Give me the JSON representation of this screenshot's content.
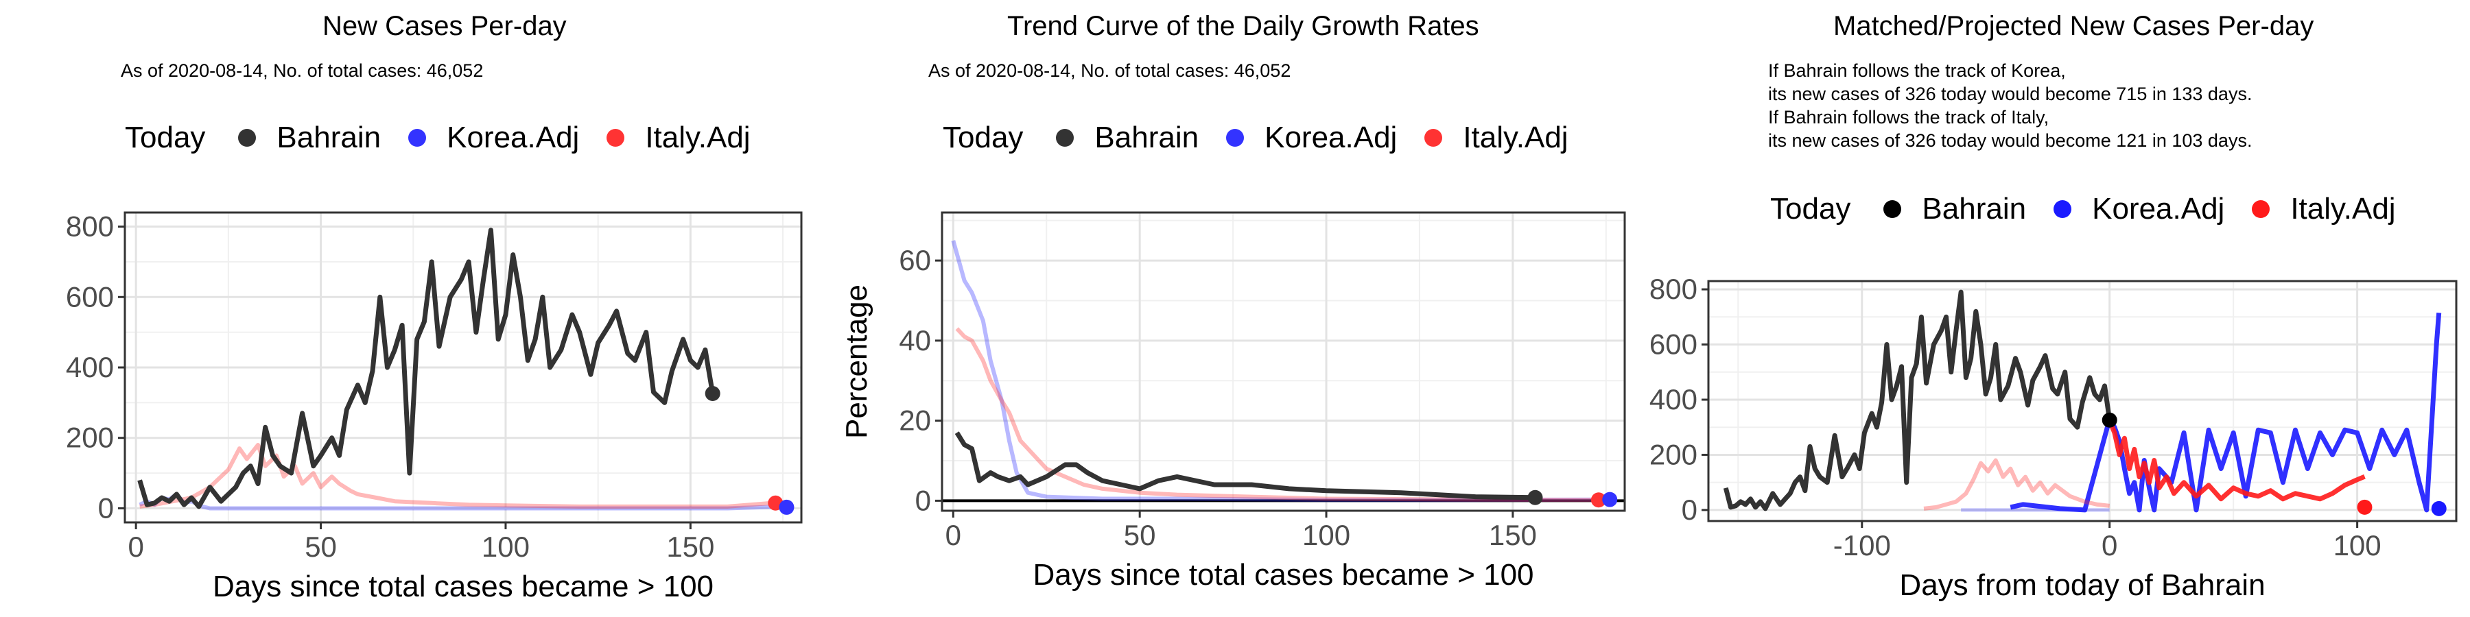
{
  "panels": [
    {
      "title": "New Cases Per-day",
      "subtitle": "As of 2020-08-14, No. of total cases: 46,052",
      "legend": {
        "title": "Today",
        "items": [
          "Bahrain",
          "Korea.Adj",
          "Italy.Adj"
        ]
      }
    },
    {
      "title": "Trend Curve of the Daily Growth Rates",
      "subtitle": "As of 2020-08-14, No. of total cases: 46,052",
      "legend": {
        "title": "Today",
        "items": [
          "Bahrain",
          "Korea.Adj",
          "Italy.Adj"
        ]
      }
    },
    {
      "title": "Matched/Projected New Cases Per-day",
      "subtitle": "If Bahrain follows the track of Korea,\nits new cases of 326 today would become 715 in 133 days.\nIf Bahrain follows the track of Italy,\nits new cases of 326 today would become 121 in 103 days.",
      "legend": {
        "title": "Today",
        "items": [
          "Bahrain",
          "Korea.Adj",
          "Italy.Adj"
        ]
      }
    }
  ],
  "colors": {
    "bahrain": "#333333",
    "korea": "#3333ff",
    "italy": "#ff3333",
    "dot_bahrain_1": "#333333",
    "dot_bahrain_3": "#000000"
  },
  "chart_data": [
    {
      "type": "line",
      "title": "New Cases Per-day",
      "xlabel": "Days since total cases became > 100",
      "ylabel": "",
      "xlim": [
        -3,
        180
      ],
      "ylim": [
        -40,
        840
      ],
      "xticks": [
        0,
        50,
        100,
        150
      ],
      "yticks": [
        0,
        200,
        400,
        600,
        800
      ],
      "series": [
        {
          "name": "Bahrain",
          "x": [
            1,
            3,
            5,
            7,
            9,
            11,
            13,
            15,
            17,
            20,
            23,
            25,
            27,
            29,
            31,
            33,
            35,
            37,
            39,
            42,
            45,
            48,
            50,
            53,
            55,
            57,
            60,
            62,
            64,
            66,
            68,
            70,
            72,
            74,
            76,
            78,
            80,
            82,
            85,
            88,
            90,
            92,
            94,
            96,
            98,
            100,
            102,
            104,
            106,
            108,
            110,
            112,
            115,
            118,
            120,
            123,
            125,
            128,
            130,
            133,
            135,
            138,
            140,
            143,
            145,
            148,
            150,
            152,
            154,
            156
          ],
          "y": [
            80,
            10,
            15,
            30,
            20,
            40,
            10,
            30,
            5,
            60,
            20,
            40,
            60,
            100,
            120,
            70,
            230,
            150,
            120,
            100,
            270,
            120,
            150,
            200,
            150,
            280,
            350,
            300,
            390,
            600,
            400,
            450,
            520,
            100,
            480,
            530,
            700,
            460,
            600,
            650,
            700,
            500,
            650,
            790,
            480,
            550,
            720,
            600,
            420,
            480,
            600,
            400,
            450,
            550,
            500,
            380,
            470,
            520,
            560,
            440,
            420,
            500,
            330,
            300,
            390,
            480,
            420,
            400,
            450,
            326
          ]
        },
        {
          "name": "Korea.Adj",
          "x": [
            1,
            3,
            5,
            7,
            9,
            11,
            13,
            15,
            18,
            20,
            25,
            30,
            40,
            50,
            60,
            80,
            100,
            120,
            140,
            160,
            175
          ],
          "y": [
            10,
            20,
            10,
            30,
            25,
            40,
            15,
            20,
            5,
            0,
            0,
            0,
            0,
            0,
            0,
            0,
            0,
            0,
            0,
            0,
            5
          ]
        },
        {
          "name": "Italy.Adj",
          "x": [
            1,
            5,
            10,
            15,
            20,
            25,
            28,
            30,
            33,
            35,
            38,
            40,
            43,
            45,
            48,
            50,
            53,
            55,
            58,
            60,
            65,
            70,
            80,
            90,
            100,
            120,
            140,
            160,
            172
          ],
          "y": [
            5,
            10,
            20,
            30,
            60,
            110,
            170,
            140,
            180,
            120,
            150,
            90,
            120,
            70,
            100,
            60,
            90,
            70,
            50,
            40,
            30,
            20,
            15,
            10,
            8,
            5,
            5,
            5,
            15
          ]
        }
      ],
      "today": [
        {
          "name": "Bahrain",
          "x": 156,
          "y": 326
        },
        {
          "name": "Italy.Adj",
          "x": 173,
          "y": 15
        },
        {
          "name": "Korea.Adj",
          "x": 176,
          "y": 3
        }
      ]
    },
    {
      "type": "line",
      "title": "Trend Curve of the Daily Growth Rates",
      "xlabel": "Days since total cases became > 100",
      "ylabel": "Percentage",
      "xlim": [
        -3,
        180
      ],
      "ylim": [
        -2.5,
        72
      ],
      "xticks": [
        0,
        50,
        100,
        150
      ],
      "yticks": [
        0,
        20,
        40,
        60
      ],
      "series": [
        {
          "name": "Bahrain",
          "x": [
            1,
            3,
            5,
            7,
            10,
            12,
            15,
            18,
            20,
            25,
            30,
            33,
            36,
            40,
            45,
            50,
            55,
            60,
            70,
            80,
            90,
            100,
            120,
            140,
            156
          ],
          "y": [
            17,
            14,
            13,
            5,
            7,
            6,
            5,
            6,
            4,
            6,
            9,
            9,
            7,
            5,
            4,
            3,
            5,
            6,
            4,
            4,
            3,
            2.5,
            2,
            1,
            0.8
          ]
        },
        {
          "name": "Korea.Adj",
          "x": [
            0,
            3,
            5,
            8,
            10,
            13,
            15,
            17,
            20,
            25,
            40,
            60,
            100,
            140,
            176
          ],
          "y": [
            65,
            55,
            52,
            45,
            35,
            25,
            15,
            7,
            2,
            1,
            0.5,
            0.5,
            0.2,
            0.2,
            0.3
          ]
        },
        {
          "name": "Italy.Adj",
          "x": [
            1,
            3,
            5,
            8,
            10,
            13,
            15,
            18,
            20,
            25,
            30,
            35,
            40,
            50,
            60,
            80,
            100,
            140,
            173
          ],
          "y": [
            43,
            41,
            40,
            35,
            30,
            25,
            22,
            15,
            13,
            8,
            6,
            4,
            3,
            2,
            1.5,
            1,
            0.5,
            0.3,
            0.2
          ]
        }
      ],
      "today": [
        {
          "name": "Bahrain",
          "x": 156,
          "y": 0.8
        },
        {
          "name": "Italy.Adj",
          "x": 173,
          "y": 0.2
        },
        {
          "name": "Korea.Adj",
          "x": 176,
          "y": 0.3
        }
      ],
      "hline": 0
    },
    {
      "type": "line",
      "title": "Matched/Projected New Cases Per-day",
      "xlabel": "Days from today of Bahrain",
      "ylabel": "",
      "xlim": [
        -162,
        140
      ],
      "ylim": [
        -40,
        830
      ],
      "xticks": [
        -100,
        0,
        100
      ],
      "yticks": [
        0,
        200,
        400,
        600,
        800
      ],
      "series": [
        {
          "name": "Bahrain",
          "x": [
            -155,
            -153,
            -151,
            -149,
            -147,
            -145,
            -143,
            -141,
            -139,
            -136,
            -133,
            -131,
            -129,
            -127,
            -125,
            -123,
            -121,
            -119,
            -117,
            -114,
            -111,
            -108,
            -106,
            -103,
            -101,
            -99,
            -96,
            -94,
            -92,
            -90,
            -88,
            -86,
            -84,
            -82,
            -80,
            -78,
            -76,
            -74,
            -71,
            -68,
            -66,
            -64,
            -62,
            -60,
            -58,
            -56,
            -54,
            -52,
            -50,
            -48,
            -46,
            -44,
            -41,
            -38,
            -36,
            -33,
            -31,
            -28,
            -26,
            -23,
            -21,
            -18,
            -16,
            -13,
            -11,
            -8,
            -6,
            -4,
            -2,
            0
          ],
          "y": [
            80,
            10,
            15,
            30,
            20,
            40,
            10,
            30,
            5,
            60,
            20,
            40,
            60,
            100,
            120,
            70,
            230,
            150,
            120,
            100,
            270,
            120,
            150,
            200,
            150,
            280,
            350,
            300,
            390,
            600,
            400,
            450,
            520,
            100,
            480,
            530,
            700,
            460,
            600,
            650,
            700,
            500,
            650,
            790,
            480,
            550,
            720,
            600,
            420,
            480,
            600,
            400,
            450,
            550,
            500,
            380,
            470,
            520,
            560,
            440,
            420,
            500,
            330,
            300,
            390,
            480,
            420,
            400,
            450,
            326
          ]
        },
        {
          "name": "Korea.Adj",
          "x": [
            -40,
            -35,
            -30,
            -25,
            -20,
            -10,
            0,
            2,
            4,
            6,
            8,
            10,
            12,
            14,
            16,
            18,
            20,
            25,
            30,
            35,
            40,
            45,
            50,
            55,
            60,
            65,
            70,
            75,
            80,
            85,
            90,
            95,
            100,
            105,
            110,
            115,
            120,
            125,
            128,
            130,
            132,
            133
          ],
          "y": [
            10,
            20,
            15,
            10,
            5,
            0,
            330,
            300,
            250,
            150,
            60,
            100,
            0,
            180,
            80,
            0,
            150,
            100,
            280,
            0,
            290,
            150,
            280,
            50,
            290,
            280,
            100,
            290,
            150,
            280,
            200,
            290,
            280,
            150,
            290,
            200,
            290,
            100,
            0,
            300,
            600,
            715
          ]
        },
        {
          "name": "Korea.Adj (past)",
          "x": [
            -60,
            -50,
            -40,
            -30,
            -20,
            -10,
            0
          ],
          "y": [
            0,
            0,
            0,
            0,
            0,
            0,
            0
          ]
        },
        {
          "name": "Italy.Adj",
          "x": [
            -75,
            -70,
            -66,
            -62,
            -58,
            -55,
            -52,
            -49,
            -46,
            -43,
            -40,
            -37,
            -34,
            -31,
            -28,
            -25,
            -22,
            -19,
            -16,
            -13,
            -10,
            -5,
            0
          ],
          "y": [
            5,
            10,
            20,
            30,
            60,
            110,
            170,
            140,
            180,
            120,
            150,
            90,
            120,
            70,
            100,
            60,
            90,
            70,
            50,
            40,
            30,
            20,
            15
          ]
        },
        {
          "name": "Italy.Adj (projected)",
          "x": [
            0,
            2,
            4,
            6,
            8,
            10,
            12,
            14,
            16,
            18,
            20,
            23,
            26,
            30,
            35,
            40,
            45,
            50,
            55,
            60,
            65,
            70,
            75,
            80,
            85,
            90,
            95,
            100,
            103
          ],
          "y": [
            326,
            280,
            200,
            260,
            150,
            220,
            120,
            170,
            100,
            180,
            80,
            120,
            60,
            100,
            50,
            90,
            40,
            80,
            60,
            50,
            70,
            40,
            60,
            50,
            40,
            60,
            90,
            110,
            121
          ]
        }
      ],
      "today": [
        {
          "name": "Bahrain",
          "x": 0,
          "y": 326
        },
        {
          "name": "Italy.Adj",
          "x": 103,
          "y": 10
        },
        {
          "name": "Korea.Adj",
          "x": 133,
          "y": 5
        }
      ]
    }
  ]
}
